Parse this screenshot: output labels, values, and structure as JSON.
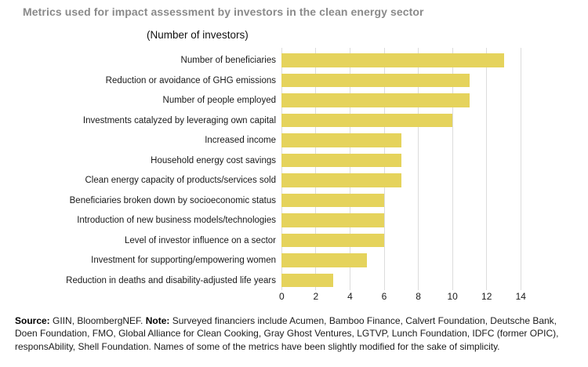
{
  "title": "Metrics used for impact assessment by investors in the clean energy sector",
  "chart_data": {
    "type": "bar",
    "orientation": "horizontal",
    "subtitle": "(Number of investors)",
    "categories": [
      "Number of beneficiaries",
      "Reduction or avoidance of GHG emissions",
      "Number of people employed",
      "Investments catalyzed by leveraging own capital",
      "Increased income",
      "Household energy cost savings",
      "Clean energy capacity of products/services sold",
      "Beneficiaries broken down by socioeconomic status",
      "Introduction of new business models/technologies",
      "Level of investor influence on a sector",
      "Investment for supporting/empowering women",
      "Reduction in deaths and disability-adjusted life years"
    ],
    "values": [
      13,
      11,
      11,
      10,
      7,
      7,
      7,
      6,
      6,
      6,
      5,
      3
    ],
    "xlabel": "",
    "ylabel": "",
    "xlim": [
      0,
      14
    ],
    "xticks": [
      0,
      2,
      4,
      6,
      8,
      10,
      12,
      14
    ],
    "grid": true,
    "legend": false,
    "bar_color": "#e5d35c",
    "gridline_color": "#dcdcdc",
    "title_color": "#8a8a8a"
  },
  "footer": {
    "source_label": "Source:",
    "source_text": " GIIN, BloombergNEF. ",
    "note_label": "Note:",
    "note_text": " Surveyed financiers include Acumen, Bamboo Finance, Calvert Foundation, Deutsche Bank, Doen Foundation, FMO, Global Alliance for Clean Cooking, Gray Ghost Ventures, LGTVP, Lunch Foundation, IDFC (former OPIC), responsAbility, Shell Foundation. Names of some of the metrics have been slightly modified for the sake of simplicity."
  }
}
